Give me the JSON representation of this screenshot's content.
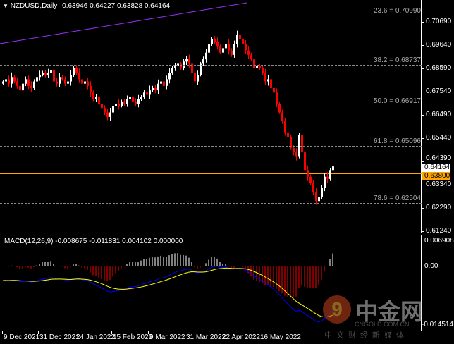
{
  "header": {
    "symbol": "NZDUSD,Daily",
    "ohlc": "0.63946 0.64227 0.63828 0.64164"
  },
  "price_axis": [
    "0.70690",
    "0.69640",
    "0.68590",
    "0.67540",
    "0.66490",
    "0.65440",
    "0.64390",
    "0.63340",
    "0.62290",
    "0.61240"
  ],
  "current_price": "0.64164",
  "horizontal_line_price": "0.63800",
  "fib_levels": [
    {
      "label": "23.6 = 0.70990",
      "price": 0.7099
    },
    {
      "label": "38.2 = 0.68737",
      "price": 0.68737
    },
    {
      "label": "50.0 = 0.66917",
      "price": 0.66917
    },
    {
      "label": "61.8 = 0.65096",
      "price": 0.65096
    },
    {
      "label": "78.6 = 0.62504",
      "price": 0.62504
    }
  ],
  "macd": {
    "label": "MACD(12,26,9) -0.008675 -0.011831 0.004102 0.000000",
    "axis": [
      "0.006908",
      "0.00",
      "-0.014514"
    ]
  },
  "date_axis": [
    "9 Dec 2021",
    "31 Dec 2021",
    "24 Jan 2022",
    "15 Feb 2022",
    "9 Mar 2022",
    "31 Mar 2022",
    "22 Apr 2022",
    "16 May 2022"
  ],
  "watermark": {
    "brand": "中金网",
    "domain": "CNGOLD.COM.CN",
    "slogan": "中文财经新媒体"
  },
  "colors": {
    "bull": "#ffffff",
    "bear": "#ff0000",
    "trendline": "#9b30ff",
    "hline": "#ffa500",
    "macd_line": "#0000ff",
    "signal_line": "#ffff00"
  },
  "chart_data": {
    "type": "candlestick",
    "closes": [
      0.68,
      0.681,
      0.679,
      0.682,
      0.68,
      0.678,
      0.676,
      0.679,
      0.681,
      0.678,
      0.677,
      0.68,
      0.682,
      0.683,
      0.684,
      0.683,
      0.684,
      0.685,
      0.68,
      0.679,
      0.682,
      0.681,
      0.679,
      0.68,
      0.683,
      0.686,
      0.684,
      0.681,
      0.679,
      0.68,
      0.678,
      0.675,
      0.672,
      0.673,
      0.67,
      0.668,
      0.666,
      0.664,
      0.666,
      0.669,
      0.67,
      0.669,
      0.671,
      0.67,
      0.672,
      0.673,
      0.671,
      0.67,
      0.672,
      0.673,
      0.675,
      0.674,
      0.676,
      0.677,
      0.676,
      0.679,
      0.68,
      0.678,
      0.681,
      0.684,
      0.686,
      0.687,
      0.688,
      0.686,
      0.689,
      0.69,
      0.688,
      0.684,
      0.68,
      0.683,
      0.688,
      0.69,
      0.693,
      0.697,
      0.699,
      0.698,
      0.696,
      0.693,
      0.695,
      0.697,
      0.694,
      0.692,
      0.697,
      0.701,
      0.699,
      0.697,
      0.694,
      0.692,
      0.69,
      0.686,
      0.687,
      0.686,
      0.684,
      0.68,
      0.681,
      0.677,
      0.675,
      0.67,
      0.666,
      0.662,
      0.657,
      0.655,
      0.65,
      0.648,
      0.646,
      0.656,
      0.648,
      0.64,
      0.637,
      0.634,
      0.63,
      0.626,
      0.628,
      0.632,
      0.637,
      0.636,
      0.64,
      0.64164
    ],
    "ylim": [
      0.6124,
      0.7069
    ]
  }
}
